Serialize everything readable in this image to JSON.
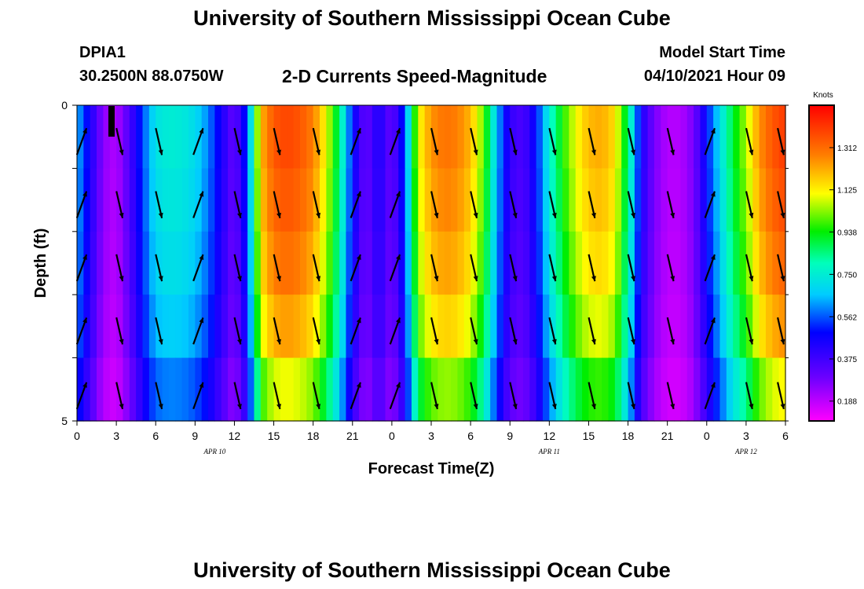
{
  "page": {
    "title_top": "University of Southern Mississippi Ocean Cube",
    "title_bottom": "University of Southern Mississippi Ocean Cube",
    "station_id": "DPIA1",
    "station_coords": "30.2500N  88.0750W",
    "model_start_label": "Model Start Time",
    "model_start_value": "04/10/2021 Hour 09"
  },
  "chart_data": {
    "type": "heatmap",
    "title": "2-D Currents Speed-Magnitude",
    "xlabel": "Forecast Time(Z)",
    "ylabel": "Depth (ft)",
    "x_hours_from_apr10_00z": {
      "min": 0,
      "max": 54,
      "step": 1
    },
    "x_tick_labels": [
      "0",
      "3",
      "6",
      "9",
      "12",
      "15",
      "18",
      "21",
      "0",
      "3",
      "6",
      "9",
      "12",
      "15",
      "18",
      "21",
      "0",
      "3",
      "6"
    ],
    "date_labels": [
      {
        "label": "APR  10",
        "hour": 10.5
      },
      {
        "label": "APR  11",
        "hour": 36
      },
      {
        "label": "APR  12",
        "hour": 51
      }
    ],
    "y_tick_labels": [
      "0",
      "5"
    ],
    "ylim": [
      0,
      5
    ],
    "depth_levels_ft": [
      0,
      1,
      2,
      3,
      4,
      5
    ],
    "colorbar": {
      "unit": "Knots",
      "min": 0.1,
      "max": 1.5,
      "tick_labels": [
        "1.312",
        "1.125",
        "0.938",
        "0.750",
        "0.562",
        "0.375",
        "0.188"
      ],
      "tick_values": [
        1.312,
        1.125,
        0.938,
        0.75,
        0.562,
        0.375,
        0.188
      ]
    },
    "speed_profile_knots": [
      {
        "hour": 0,
        "v": 0.65
      },
      {
        "hour": 1,
        "v": 0.45
      },
      {
        "hour": 2,
        "v": 0.25
      },
      {
        "hour": 3,
        "v": 0.2
      },
      {
        "hour": 4,
        "v": 0.35
      },
      {
        "hour": 5,
        "v": 0.55
      },
      {
        "hour": 6,
        "v": 0.72
      },
      {
        "hour": 7,
        "v": 0.75
      },
      {
        "hour": 8,
        "v": 0.74
      },
      {
        "hour": 9,
        "v": 0.7
      },
      {
        "hour": 10,
        "v": 0.6
      },
      {
        "hour": 11,
        "v": 0.45
      },
      {
        "hour": 12,
        "v": 0.3
      },
      {
        "hour": 13,
        "v": 0.55
      },
      {
        "hour": 14,
        "v": 1.2
      },
      {
        "hour": 15,
        "v": 1.35
      },
      {
        "hour": 16,
        "v": 1.38
      },
      {
        "hour": 17,
        "v": 1.35
      },
      {
        "hour": 18,
        "v": 1.28
      },
      {
        "hour": 19,
        "v": 1.1
      },
      {
        "hour": 20,
        "v": 0.85
      },
      {
        "hour": 21,
        "v": 0.5
      },
      {
        "hour": 22,
        "v": 0.3
      },
      {
        "hour": 23,
        "v": 0.45
      },
      {
        "hour": 24,
        "v": 0.3
      },
      {
        "hour": 25,
        "v": 0.55
      },
      {
        "hour": 26,
        "v": 1.1
      },
      {
        "hour": 27,
        "v": 1.25
      },
      {
        "hour": 28,
        "v": 1.3
      },
      {
        "hour": 29,
        "v": 1.28
      },
      {
        "hour": 30,
        "v": 1.2
      },
      {
        "hour": 31,
        "v": 1.0
      },
      {
        "hour": 32,
        "v": 0.65
      },
      {
        "hour": 33,
        "v": 0.4
      },
      {
        "hour": 34,
        "v": 0.35
      },
      {
        "hour": 35,
        "v": 0.5
      },
      {
        "hour": 36,
        "v": 0.75
      },
      {
        "hour": 37,
        "v": 0.95
      },
      {
        "hour": 38,
        "v": 1.1
      },
      {
        "hour": 39,
        "v": 1.2
      },
      {
        "hour": 40,
        "v": 1.22
      },
      {
        "hour": 41,
        "v": 1.15
      },
      {
        "hour": 42,
        "v": 0.85
      },
      {
        "hour": 43,
        "v": 0.45
      },
      {
        "hour": 44,
        "v": 0.28
      },
      {
        "hour": 45,
        "v": 0.2
      },
      {
        "hour": 46,
        "v": 0.2
      },
      {
        "hour": 47,
        "v": 0.28
      },
      {
        "hour": 48,
        "v": 0.5
      },
      {
        "hour": 49,
        "v": 0.7
      },
      {
        "hour": 50,
        "v": 0.9
      },
      {
        "hour": 51,
        "v": 1.05
      },
      {
        "hour": 52,
        "v": 1.25
      },
      {
        "hour": 53,
        "v": 1.35
      },
      {
        "hour": 54,
        "v": 1.4
      }
    ],
    "depth_speed_factor": [
      1.0,
      0.98,
      0.95,
      0.9,
      0.8,
      0.68
    ],
    "vector_hours": [
      0,
      3,
      6,
      9,
      12,
      15,
      18,
      21,
      24,
      27,
      30,
      33,
      36,
      39,
      42,
      45,
      48,
      51,
      54
    ],
    "vector_direction_by_hour": [
      {
        "hour": 0,
        "dir": "up"
      },
      {
        "hour": 3,
        "dir": "down"
      },
      {
        "hour": 6,
        "dir": "down"
      },
      {
        "hour": 9,
        "dir": "up"
      },
      {
        "hour": 12,
        "dir": "down"
      },
      {
        "hour": 15,
        "dir": "down"
      },
      {
        "hour": 18,
        "dir": "down"
      },
      {
        "hour": 21,
        "dir": "up"
      },
      {
        "hour": 24,
        "dir": "up"
      },
      {
        "hour": 27,
        "dir": "down"
      },
      {
        "hour": 30,
        "dir": "down"
      },
      {
        "hour": 33,
        "dir": "down"
      },
      {
        "hour": 36,
        "dir": "down"
      },
      {
        "hour": 39,
        "dir": "down"
      },
      {
        "hour": 42,
        "dir": "down"
      },
      {
        "hour": 45,
        "dir": "down"
      },
      {
        "hour": 48,
        "dir": "up"
      },
      {
        "hour": 51,
        "dir": "down"
      },
      {
        "hour": 54,
        "dir": "down"
      }
    ],
    "grid": false,
    "legend": "colorbar-right"
  }
}
